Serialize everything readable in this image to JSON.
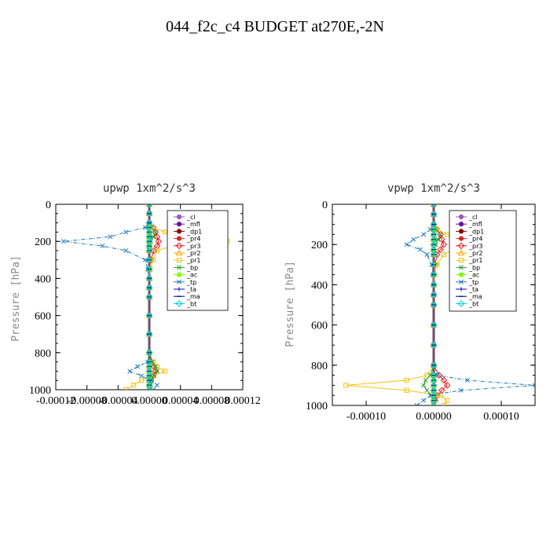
{
  "page_title": "044_f2c_c4  BUDGET at270E,-2N",
  "legend_entries": [
    "_cl",
    "_mfl",
    "_dp1",
    "_pr4",
    "_pr3",
    "_pr2",
    "_pr1",
    "_bp",
    "_ac",
    "_tp",
    "_ta",
    "_ma",
    "_bt"
  ],
  "chart_data": [
    {
      "type": "line",
      "title": "upwp   1xm^2/s^3",
      "ylabel": "Pressure [hPa]",
      "xlim": [
        -0.00012,
        0.00012
      ],
      "ylim": [
        1000,
        0
      ],
      "xticks": [
        -0.00012,
        -8e-05,
        -4e-05,
        0.0,
        4e-05,
        8e-05,
        0.00012
      ],
      "xtick_labels": [
        "-0.00012",
        "-0.00008",
        "-0.00004",
        "0.00000",
        "0.00004",
        "0.00008",
        "0.00012"
      ],
      "yticks": [
        0,
        200,
        400,
        600,
        800,
        1000
      ],
      "legend_position": "top-right",
      "pressure": [
        0,
        50,
        100,
        125,
        150,
        175,
        200,
        225,
        250,
        300,
        350,
        400,
        450,
        500,
        600,
        700,
        800,
        850,
        875,
        900,
        925,
        950,
        975,
        1000
      ],
      "series": [
        {
          "name": "_cl",
          "color": "#9b59b6",
          "marker": "o",
          "values": [
            0,
            0,
            0,
            0,
            0,
            0,
            0,
            0,
            0,
            0,
            0,
            0,
            0,
            0,
            0,
            0,
            0,
            0,
            0,
            0,
            0,
            0,
            0,
            0
          ]
        },
        {
          "name": "_mfl",
          "color": "#6a0dad",
          "marker": "o",
          "values": [
            0,
            0,
            0,
            0,
            0,
            0,
            0,
            0,
            0,
            0,
            0,
            0,
            0,
            0,
            0,
            0,
            0,
            0,
            0,
            0,
            0,
            0,
            0,
            0
          ]
        },
        {
          "name": "_dp1",
          "color": "#8b0000",
          "marker": "o",
          "values": [
            0,
            0,
            0,
            0,
            0,
            0,
            0,
            0,
            0,
            0,
            0,
            0,
            0,
            0,
            0,
            0,
            0,
            0,
            0,
            0,
            0,
            0,
            0,
            0
          ]
        },
        {
          "name": "_pr4",
          "color": "#d62728",
          "marker": "o",
          "values": [
            0,
            0,
            0,
            0,
            0,
            0,
            0,
            0,
            0,
            0,
            0,
            0,
            0,
            0,
            0,
            0,
            0,
            0,
            0,
            0,
            0,
            0,
            0,
            0
          ]
        },
        {
          "name": "_pr3",
          "color": "#e31a1c",
          "marker": "d",
          "values": [
            0,
            0,
            0,
            5e-06,
            8e-06,
            1e-05,
            1.2e-05,
            1e-05,
            6e-06,
            2e-06,
            0,
            0,
            0,
            0,
            0,
            0,
            0,
            2e-06,
            6e-06,
            8e-06,
            5e-06,
            2e-06,
            0,
            0
          ]
        },
        {
          "name": "_pr2",
          "color": "#ffa500",
          "marker": "t",
          "values": [
            0,
            0,
            0,
            0,
            0,
            0,
            0,
            0,
            0,
            0,
            0,
            0,
            0,
            0,
            0,
            0,
            0,
            0,
            0,
            0,
            0,
            0,
            0,
            0
          ]
        },
        {
          "name": "_pr1",
          "color": "#f1c40f",
          "marker": "s",
          "values": [
            0,
            0,
            0,
            3e-06,
            2e-05,
            5e-05,
            0.0001,
            3e-05,
            1e-05,
            5e-06,
            1e-06,
            0,
            0,
            0,
            0,
            0,
            0,
            5e-06,
            1e-05,
            2e-05,
            5e-06,
            -1e-05,
            -2e-05,
            -3e-05
          ]
        },
        {
          "name": "_bp",
          "color": "#2ca02c",
          "marker": "x",
          "values": [
            0,
            0,
            0,
            2e-06,
            8e-06,
            5e-06,
            2e-06,
            0,
            0,
            0,
            0,
            0,
            0,
            0,
            0,
            0,
            0,
            4e-06,
            8e-06,
            1e-05,
            6e-06,
            3e-06,
            2e-06,
            0
          ]
        },
        {
          "name": "_ac",
          "color": "#7fff00",
          "marker": "o",
          "values": [
            0,
            0,
            0,
            0,
            0,
            0,
            0,
            0,
            0,
            0,
            0,
            0,
            0,
            0,
            0,
            0,
            0,
            0,
            0,
            0,
            0,
            0,
            0,
            0
          ]
        },
        {
          "name": "_tp",
          "color": "#1f77b4",
          "marker": "x",
          "values": [
            0,
            0,
            0,
            -5e-06,
            -3e-05,
            -5e-05,
            -0.00011,
            -6e-05,
            -3e-05,
            -5e-06,
            -2e-06,
            0,
            0,
            0,
            0,
            0,
            0,
            -2e-06,
            -1.5e-05,
            -2.5e-05,
            -1e-05,
            2e-06,
            1e-05,
            5e-06
          ]
        },
        {
          "name": "_ta",
          "color": "#0000cd",
          "marker": "+",
          "values": [
            0,
            0,
            0,
            0,
            0,
            0,
            0,
            0,
            0,
            0,
            0,
            0,
            0,
            0,
            0,
            0,
            0,
            0,
            0,
            0,
            0,
            0,
            0,
            0
          ]
        },
        {
          "name": "_ma",
          "color": "#00008b",
          "marker": "-",
          "values": [
            0,
            0,
            0,
            0,
            0,
            0,
            0,
            0,
            0,
            0,
            0,
            0,
            0,
            0,
            0,
            0,
            0,
            0,
            0,
            0,
            0,
            0,
            0,
            0
          ]
        },
        {
          "name": "_bt",
          "color": "#00ced1",
          "marker": "d",
          "values": [
            0,
            0,
            0,
            0,
            0,
            0,
            0,
            0,
            0,
            0,
            0,
            0,
            0,
            0,
            0,
            0,
            0,
            0,
            0,
            0,
            0,
            0,
            0,
            0
          ]
        }
      ]
    },
    {
      "type": "line",
      "title": "vpwp   1xm^2/s^3",
      "ylabel": "Pressure [hPa]",
      "xlim": [
        -0.00015,
        0.00015
      ],
      "ylim": [
        1000,
        0
      ],
      "xticks": [
        -0.0001,
        0.0,
        0.0001
      ],
      "xtick_labels": [
        "-0.00010",
        "0.00000",
        "0.00010"
      ],
      "yticks": [
        0,
        200,
        400,
        600,
        800,
        1000
      ],
      "legend_position": "top-right",
      "pressure": [
        0,
        50,
        100,
        125,
        150,
        175,
        200,
        225,
        250,
        300,
        350,
        400,
        450,
        500,
        600,
        700,
        800,
        850,
        875,
        900,
        925,
        950,
        975,
        1000
      ],
      "series": [
        {
          "name": "_cl",
          "color": "#9b59b6",
          "marker": "o",
          "values": [
            0,
            0,
            0,
            0,
            0,
            0,
            0,
            0,
            0,
            0,
            0,
            0,
            0,
            0,
            0,
            0,
            0,
            0,
            0,
            0,
            0,
            0,
            0,
            0
          ]
        },
        {
          "name": "_mfl",
          "color": "#6a0dad",
          "marker": "o",
          "values": [
            0,
            0,
            0,
            0,
            0,
            0,
            0,
            0,
            0,
            0,
            0,
            0,
            0,
            0,
            0,
            0,
            0,
            0,
            0,
            0,
            0,
            0,
            0,
            0
          ]
        },
        {
          "name": "_dp1",
          "color": "#8b0000",
          "marker": "o",
          "values": [
            0,
            0,
            0,
            0,
            0,
            0,
            0,
            0,
            0,
            0,
            0,
            0,
            0,
            0,
            0,
            0,
            0,
            0,
            0,
            0,
            0,
            0,
            0,
            0
          ]
        },
        {
          "name": "_pr4",
          "color": "#d62728",
          "marker": "o",
          "values": [
            0,
            0,
            0,
            0,
            0,
            0,
            0,
            0,
            0,
            0,
            0,
            0,
            0,
            0,
            0,
            0,
            0,
            0,
            0,
            0,
            0,
            0,
            0,
            0
          ]
        },
        {
          "name": "_pr3",
          "color": "#e31a1c",
          "marker": "d",
          "values": [
            0,
            0,
            0,
            4e-06,
            1e-05,
            1.2e-05,
            1.5e-05,
            1e-05,
            5e-06,
            2e-06,
            0,
            0,
            0,
            0,
            0,
            0,
            0,
            8e-06,
            1.5e-05,
            2e-05,
            1.2e-05,
            5e-06,
            2e-06,
            0
          ]
        },
        {
          "name": "_pr2",
          "color": "#ffa500",
          "marker": "t",
          "values": [
            0,
            0,
            0,
            0,
            0,
            0,
            0,
            0,
            0,
            0,
            0,
            0,
            0,
            0,
            0,
            0,
            0,
            0,
            0,
            0,
            0,
            0,
            0,
            0
          ]
        },
        {
          "name": "_pr1",
          "color": "#f1c40f",
          "marker": "s",
          "values": [
            0,
            0,
            0,
            5e-06,
            2e-05,
            4e-05,
            5e-05,
            3e-05,
            1.5e-05,
            5e-06,
            1e-06,
            0,
            0,
            0,
            0,
            0,
            0,
            -1e-05,
            -4e-05,
            -0.00013,
            -4e-05,
            1e-05,
            2e-05,
            1.5e-05
          ]
        },
        {
          "name": "_bp",
          "color": "#2ca02c",
          "marker": "x",
          "values": [
            0,
            0,
            0,
            3e-06,
            1e-05,
            6e-06,
            3e-06,
            0,
            0,
            0,
            0,
            0,
            0,
            0,
            0,
            0,
            0,
            -5e-06,
            -1.2e-05,
            -1.5e-05,
            -1e-05,
            -4e-06,
            0,
            0
          ]
        },
        {
          "name": "_ac",
          "color": "#7fff00",
          "marker": "o",
          "values": [
            0,
            0,
            0,
            0,
            0,
            0,
            0,
            0,
            0,
            0,
            0,
            0,
            0,
            0,
            0,
            0,
            0,
            0,
            0,
            0,
            0,
            0,
            0,
            0
          ]
        },
        {
          "name": "_tp",
          "color": "#1f77b4",
          "marker": "x",
          "values": [
            0,
            0,
            0,
            -5e-06,
            -1.5e-05,
            -3e-05,
            -4e-05,
            -2e-05,
            -1e-05,
            -3e-06,
            -1e-06,
            0,
            0,
            0,
            0,
            0,
            0,
            5e-06,
            5e-05,
            0.00015,
            4e-05,
            -5e-06,
            -1.5e-05,
            -2.5e-05
          ]
        },
        {
          "name": "_ta",
          "color": "#0000cd",
          "marker": "+",
          "values": [
            0,
            0,
            0,
            0,
            0,
            0,
            0,
            0,
            0,
            0,
            0,
            0,
            0,
            0,
            0,
            0,
            0,
            0,
            0,
            0,
            0,
            0,
            0,
            0
          ]
        },
        {
          "name": "_ma",
          "color": "#00008b",
          "marker": "-",
          "values": [
            0,
            0,
            0,
            0,
            0,
            0,
            0,
            0,
            0,
            0,
            0,
            0,
            0,
            0,
            0,
            0,
            0,
            0,
            0,
            0,
            0,
            0,
            0,
            0
          ]
        },
        {
          "name": "_bt",
          "color": "#00ced1",
          "marker": "d",
          "values": [
            0,
            0,
            0,
            0,
            0,
            0,
            0,
            0,
            0,
            0,
            0,
            0,
            0,
            0,
            0,
            0,
            0,
            0,
            0,
            0,
            0,
            0,
            0,
            0
          ]
        }
      ]
    }
  ]
}
